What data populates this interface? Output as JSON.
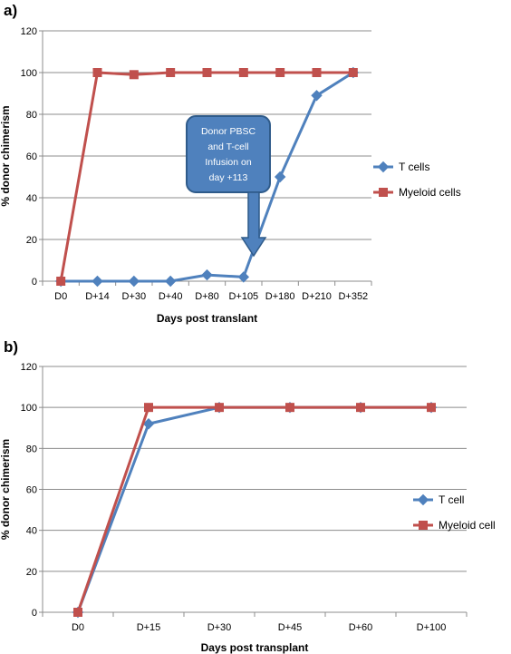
{
  "chart_data": [
    {
      "type": "line",
      "panel_label": "a)",
      "categories": [
        "D0",
        "D+14",
        "D+30",
        "D+40",
        "D+80",
        "D+105",
        "D+180",
        "D+210",
        "D+352"
      ],
      "xlabel": "Days post translant",
      "ylabel": "% donor chimerism",
      "ylim": [
        0,
        120
      ],
      "yticks": [
        0,
        20,
        40,
        60,
        80,
        100,
        120
      ],
      "grid": true,
      "legend_position": "right",
      "series": [
        {
          "name": "T cells",
          "marker": "diamond",
          "color": "#4f81bd",
          "values": [
            0,
            0,
            0,
            0,
            3,
            2,
            50,
            89,
            100
          ]
        },
        {
          "name": "Myeloid cells",
          "marker": "square",
          "color": "#c0504d",
          "values": [
            0,
            100,
            99,
            100,
            100,
            100,
            100,
            100,
            100
          ]
        }
      ],
      "annotation": {
        "lines": [
          "Donor PBSC",
          "and T-cell",
          "Infusion on",
          "day +113"
        ],
        "fill": "#4f81bd"
      }
    },
    {
      "type": "line",
      "panel_label": "b)",
      "categories": [
        "D0",
        "D+15",
        "D+30",
        "D+45",
        "D+60",
        "D+100"
      ],
      "xlabel": "Days post transplant",
      "ylabel": "% donor chimerism",
      "ylim": [
        0,
        120
      ],
      "yticks": [
        0,
        20,
        40,
        60,
        80,
        100,
        120
      ],
      "grid": true,
      "legend_position": "right",
      "series": [
        {
          "name": "T cell",
          "marker": "diamond",
          "color": "#4f81bd",
          "values": [
            0,
            92,
            100,
            100,
            100,
            100
          ]
        },
        {
          "name": "Myeloid cell",
          "marker": "square",
          "color": "#c0504d",
          "values": [
            0,
            100,
            100,
            100,
            100,
            100
          ]
        }
      ]
    }
  ]
}
